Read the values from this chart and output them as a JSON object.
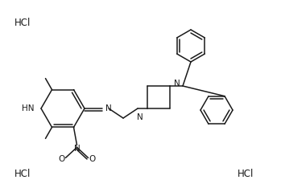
{
  "background_color": "#ffffff",
  "line_color": "#1a1a1a",
  "text_color": "#1a1a1a",
  "lw": 1.1,
  "hcl1": [
    18,
    22
  ],
  "hcl2": [
    18,
    210
  ],
  "hcl3": [
    295,
    210
  ]
}
